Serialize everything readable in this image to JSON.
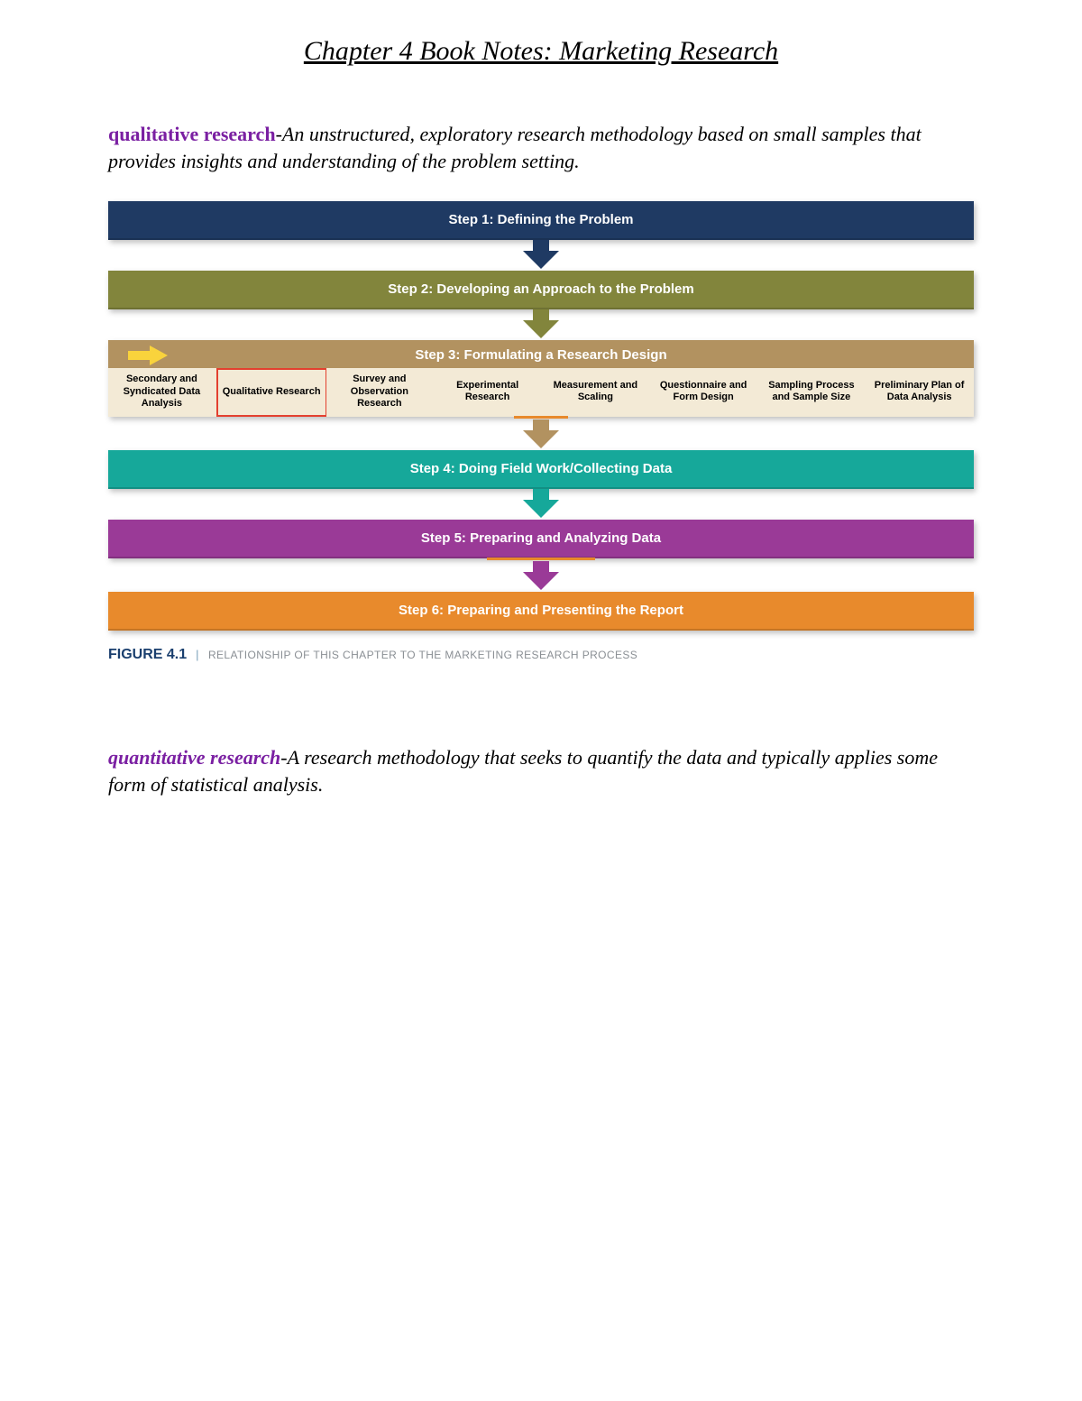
{
  "title": "Chapter 4 Book Notes: Marketing Research",
  "definitions": {
    "qualitative": {
      "term": "qualitative research",
      "sep": "-",
      "text": "An unstructured, exploratory research methodology based on small samples that provides insights and understanding of the problem setting."
    },
    "quantitative": {
      "term": "quantitative research",
      "sep": "-",
      "text": "A research methodology that seeks to quantify the data and typically applies some form of statistical analysis."
    }
  },
  "term_color": "#7a1fa2",
  "flowchart": {
    "bar_text_color": "#ffffff",
    "sub_text_color": "#000000",
    "shadow_color": "rgba(0,0,0,0.25)",
    "steps": [
      {
        "label": "Step 1: Defining the Problem",
        "bg": "#1f3a63",
        "arrow": "#1f3a63"
      },
      {
        "label": "Step 2: Developing an Approach to the Problem",
        "bg": "#82853c",
        "arrow": "#82853c"
      },
      {
        "label": "Step 3: Formulating a Research Design",
        "bg_head": "#b29260",
        "bg_sub": "#f3ead6",
        "arrow": "#b29260",
        "underline": "#e88a2c",
        "underline_width": 60
      },
      {
        "label": "Step 4: Doing Field Work/Collecting Data",
        "bg": "#16a89a",
        "arrow": "#16a89a"
      },
      {
        "label": "Step 5: Preparing and Analyzing Data",
        "bg": "#9a3a97",
        "arrow": "#9a3a97",
        "underline": "#e88a2c",
        "underline_width": 120
      },
      {
        "label": "Step 6: Preparing and Presenting the Report",
        "bg": "#e88a2c"
      }
    ],
    "step3_subitems": [
      "Secondary and Syndicated Data Analysis",
      "Qualitative Research",
      "Survey and Observation Research",
      "Experimental Research",
      "Measurement and Scaling",
      "Questionnaire and Form Design",
      "Sampling Process and Sample Size",
      "Preliminary Plan of Data Analysis"
    ],
    "step3_highlight_index": 1,
    "step3_highlight_border": "#e3402f",
    "yellow_arrow_color": "#f9d33c",
    "arrow_shaft_width": 18,
    "arrow_shaft_height": 12,
    "arrow_head_size": 20
  },
  "figure_caption": {
    "number": "FIGURE 4.1",
    "bar": "|",
    "text": "RELATIONSHIP OF THIS CHAPTER TO THE MARKETING RESEARCH PROCESS",
    "num_color": "#1a3f6e",
    "bar_color": "#7aa0b8",
    "text_color": "#8a8f94"
  }
}
